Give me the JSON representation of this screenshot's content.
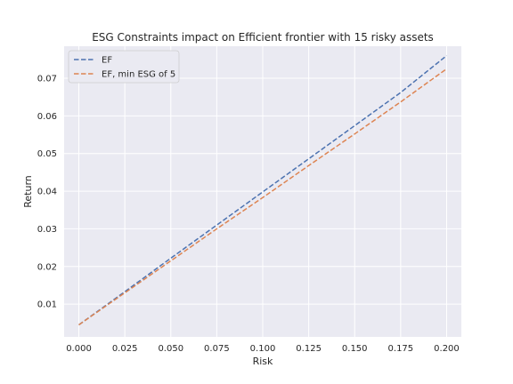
{
  "chart_data": {
    "type": "line",
    "title": "ESG Constraints impact on Efficient frontier with 15 risky assets",
    "xlabel": "Risk",
    "ylabel": "Return",
    "xlim": [
      -0.008,
      0.208
    ],
    "ylim": [
      0.0013,
      0.0785
    ],
    "x_ticks": [
      0.0,
      0.025,
      0.05,
      0.075,
      0.1,
      0.125,
      0.15,
      0.175,
      0.2
    ],
    "x_tick_labels": [
      "0.000",
      "0.025",
      "0.050",
      "0.075",
      "0.100",
      "0.125",
      "0.150",
      "0.175",
      "0.200"
    ],
    "y_ticks": [
      0.01,
      0.02,
      0.03,
      0.04,
      0.05,
      0.06,
      0.07
    ],
    "y_tick_labels": [
      "0.01",
      "0.02",
      "0.03",
      "0.04",
      "0.05",
      "0.06",
      "0.07"
    ],
    "grid": true,
    "legend_position": "top-left",
    "background_color": "#eaeaf2",
    "series": [
      {
        "name": "EF",
        "color": "#4c72b0",
        "style": "dashed",
        "x": [
          0.0,
          0.025,
          0.05,
          0.075,
          0.1,
          0.125,
          0.15,
          0.175,
          0.2
        ],
        "y": [
          0.0045,
          0.0133,
          0.0222,
          0.031,
          0.0398,
          0.0486,
          0.0574,
          0.0662,
          0.076
        ]
      },
      {
        "name": "EF, min ESG of 5",
        "color": "#dd8452",
        "style": "dashed",
        "x": [
          0.0,
          0.025,
          0.05,
          0.075,
          0.1,
          0.125,
          0.15,
          0.175,
          0.2
        ],
        "y": [
          0.0045,
          0.013,
          0.0215,
          0.03,
          0.0383,
          0.0468,
          0.0552,
          0.0637,
          0.0725
        ]
      }
    ]
  }
}
